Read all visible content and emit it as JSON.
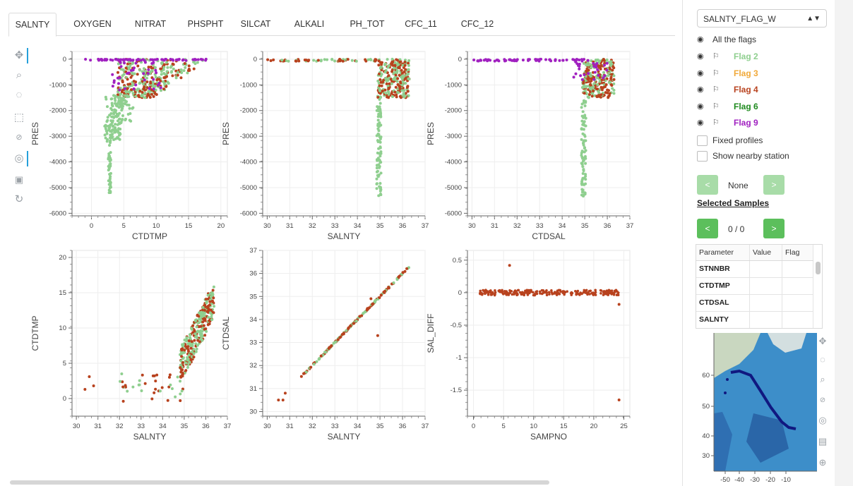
{
  "tabs": [
    {
      "label": "SALNTY",
      "active": true
    },
    {
      "label": "OXYGEN"
    },
    {
      "label": "NITRAT"
    },
    {
      "label": "PHSPHT"
    },
    {
      "label": "SILCAT"
    },
    {
      "label": "ALKALI"
    },
    {
      "label": "PH_TOT"
    },
    {
      "label": "CFC_11"
    },
    {
      "label": "CFC_12"
    }
  ],
  "toolbar": {
    "tools": [
      "pan-icon",
      "box-zoom-icon",
      "lasso-icon",
      "box-select-icon",
      "wheel-zoom-icon",
      "tap-icon",
      "save-icon",
      "reset-icon"
    ]
  },
  "colors": {
    "flag2": "#8fcf8f",
    "flag3": "#f0a838",
    "flag4": "#b8421e",
    "flag6": "#1e8a1e",
    "flag9": "#a020c0",
    "nav_button": "#7fcf7f",
    "nav_button_dim": "#a8dca8"
  },
  "sidebar": {
    "flag_select": "SALNTY_FLAG_W",
    "all_flags_label": "All the flags",
    "flags": [
      {
        "label": "Flag 2",
        "color": "#8fcf8f"
      },
      {
        "label": "Flag 3",
        "color": "#f0a838"
      },
      {
        "label": "Flag 4",
        "color": "#b8421e"
      },
      {
        "label": "Flag 6",
        "color": "#1e8a1e"
      },
      {
        "label": "Flag 9",
        "color": "#a020c0"
      }
    ],
    "fixed_profiles_label": "Fixed profiles",
    "nearby_station_label": "Show nearby station",
    "station_nav": {
      "prev": "<",
      "value": "None",
      "next": ">"
    },
    "selected_samples_title": "Selected Samples",
    "sample_nav": {
      "prev": "<",
      "value": "0 / 0",
      "next": ">"
    },
    "table": {
      "headers": [
        "Parameter",
        "Value",
        "Flag"
      ],
      "rows": [
        "STNNBR",
        "CTDTMP",
        "CTDSAL",
        "SALNTY"
      ]
    },
    "map": {
      "y_ticks": [
        "60",
        "50",
        "40",
        "30"
      ],
      "x_ticks": [
        "-50",
        "-40",
        "-30",
        "-20",
        "-10"
      ],
      "tools": [
        "pan-icon",
        "lasso-icon",
        "box-zoom-icon",
        "wheel-zoom-icon",
        "tap-icon",
        "hover-icon",
        "crosshair-icon"
      ]
    }
  },
  "plots": [
    {
      "xlabel": "CTDTMP",
      "ylabel": "PRES",
      "x_ticks": [
        "0",
        "5",
        "10",
        "15",
        "20"
      ],
      "y_ticks": [
        "0",
        "-1000",
        "-2000",
        "-3000",
        "-4000",
        "-5000",
        "-6000"
      ]
    },
    {
      "xlabel": "SALNTY",
      "ylabel": "PRES",
      "x_ticks": [
        "30",
        "31",
        "32",
        "33",
        "34",
        "35",
        "36",
        "37"
      ],
      "y_ticks": [
        "0",
        "-1000",
        "-2000",
        "-3000",
        "-4000",
        "-5000",
        "-6000"
      ]
    },
    {
      "xlabel": "CTDSAL",
      "ylabel": "PRES",
      "x_ticks": [
        "30",
        "31",
        "32",
        "33",
        "34",
        "35",
        "36",
        "37"
      ],
      "y_ticks": [
        "0",
        "-1000",
        "-2000",
        "-3000",
        "-4000",
        "-5000",
        "-6000"
      ]
    },
    {
      "xlabel": "SALNTY",
      "ylabel": "CTDTMP",
      "x_ticks": [
        "30",
        "31",
        "32",
        "33",
        "34",
        "35",
        "36",
        "37"
      ],
      "y_ticks": [
        "20",
        "15",
        "10",
        "5",
        "0"
      ]
    },
    {
      "xlabel": "SALNTY",
      "ylabel": "CTDSAL",
      "x_ticks": [
        "30",
        "31",
        "32",
        "33",
        "34",
        "35",
        "36",
        "37"
      ],
      "y_ticks": [
        "37",
        "36",
        "35",
        "34",
        "33",
        "32",
        "31",
        "30"
      ]
    },
    {
      "xlabel": "SAMPNO",
      "ylabel": "SAL_DIFF",
      "x_ticks": [
        "0",
        "5",
        "10",
        "15",
        "20",
        "25"
      ],
      "y_ticks": [
        "0.5",
        "0",
        "-0.5",
        "-1",
        "-1.5"
      ]
    }
  ]
}
